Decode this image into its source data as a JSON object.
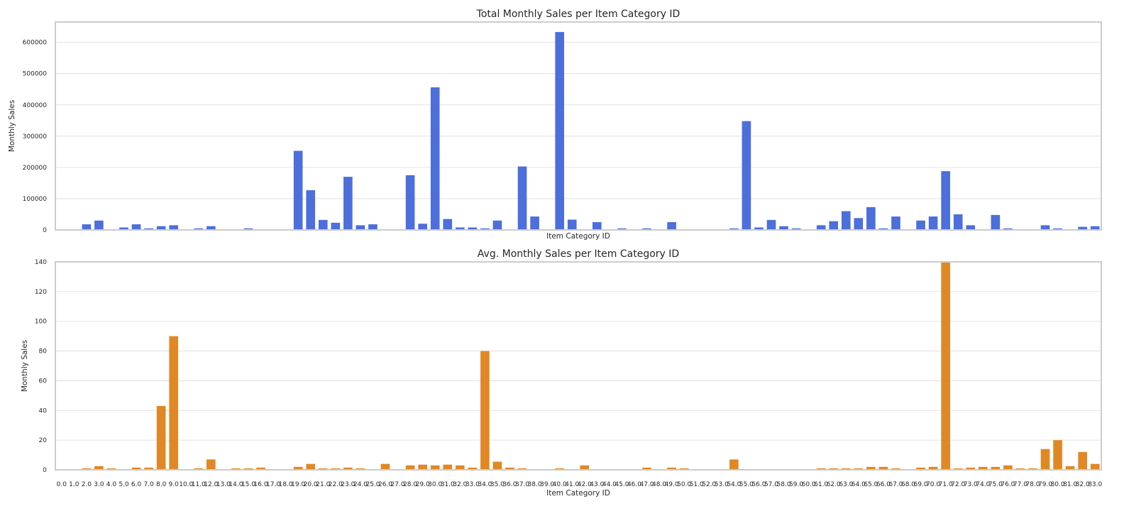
{
  "chart_data": [
    {
      "type": "bar",
      "title": "Total Monthly Sales per Item Category ID",
      "xlabel": "Item Category ID",
      "ylabel": "Monthly Sales",
      "ylim": [
        0,
        665000
      ],
      "yticks": [
        0,
        100000,
        200000,
        300000,
        400000,
        500000,
        600000
      ],
      "color": "#4c6fdc",
      "show_x_tick_labels": false,
      "grid": "horizontal",
      "categories": [
        "0.0",
        "1.0",
        "2.0",
        "3.0",
        "4.0",
        "5.0",
        "6.0",
        "7.0",
        "8.0",
        "9.0",
        "10.0",
        "11.0",
        "12.0",
        "13.0",
        "14.0",
        "15.0",
        "16.0",
        "17.0",
        "18.0",
        "19.0",
        "20.0",
        "21.0",
        "22.0",
        "23.0",
        "24.0",
        "25.0",
        "26.0",
        "27.0",
        "28.0",
        "29.0",
        "30.0",
        "31.0",
        "32.0",
        "33.0",
        "34.0",
        "35.0",
        "36.0",
        "37.0",
        "38.0",
        "39.0",
        "40.0",
        "41.0",
        "42.0",
        "43.0",
        "44.0",
        "45.0",
        "46.0",
        "47.0",
        "48.0",
        "49.0",
        "50.0",
        "51.0",
        "52.0",
        "53.0",
        "54.0",
        "55.0",
        "56.0",
        "57.0",
        "58.0",
        "59.0",
        "60.0",
        "61.0",
        "62.0",
        "63.0",
        "64.0",
        "65.0",
        "66.0",
        "67.0",
        "68.0",
        "69.0",
        "70.0",
        "71.0",
        "72.0",
        "73.0",
        "74.0",
        "75.0",
        "76.0",
        "77.0",
        "78.0",
        "79.0",
        "80.0",
        "81.0",
        "82.0",
        "83.0"
      ],
      "values": [
        0,
        0,
        18000,
        30000,
        0,
        8000,
        18000,
        5000,
        12000,
        15000,
        0,
        5000,
        12000,
        0,
        0,
        5000,
        0,
        0,
        0,
        253000,
        127000,
        32000,
        23000,
        170000,
        15000,
        18000,
        0,
        0,
        175000,
        20000,
        456000,
        35000,
        8000,
        8000,
        5000,
        30000,
        0,
        203000,
        43000,
        0,
        633000,
        33000,
        0,
        25000,
        0,
        5000,
        0,
        5000,
        0,
        25000,
        0,
        0,
        0,
        0,
        5000,
        348000,
        8000,
        32000,
        12000,
        5000,
        0,
        15000,
        28000,
        60000,
        38000,
        73000,
        5000,
        43000,
        0,
        30000,
        43000,
        188000,
        50000,
        15000,
        0,
        48000,
        5000,
        2000,
        0,
        15000,
        5000,
        0,
        10000,
        12000
      ]
    },
    {
      "type": "bar",
      "title": "Avg. Monthly Sales per Item Category ID",
      "xlabel": "Item Category ID",
      "ylabel": "Monthly Sales",
      "ylim": [
        0,
        140
      ],
      "yticks": [
        0,
        20,
        40,
        60,
        80,
        100,
        120,
        140
      ],
      "color": "#e08825",
      "show_x_tick_labels": true,
      "grid": "horizontal",
      "categories": [
        "0.0",
        "1.0",
        "2.0",
        "3.0",
        "4.0",
        "5.0",
        "6.0",
        "7.0",
        "8.0",
        "9.0",
        "10.0",
        "11.0",
        "12.0",
        "13.0",
        "14.0",
        "15.0",
        "16.0",
        "17.0",
        "18.0",
        "19.0",
        "20.0",
        "21.0",
        "22.0",
        "23.0",
        "24.0",
        "25.0",
        "26.0",
        "27.0",
        "28.0",
        "29.0",
        "30.0",
        "31.0",
        "32.0",
        "33.0",
        "34.0",
        "35.0",
        "36.0",
        "37.0",
        "38.0",
        "39.0",
        "40.0",
        "41.0",
        "42.0",
        "43.0",
        "44.0",
        "45.0",
        "46.0",
        "47.0",
        "48.0",
        "49.0",
        "50.0",
        "51.0",
        "52.0",
        "53.0",
        "54.0",
        "55.0",
        "56.0",
        "57.0",
        "58.0",
        "59.0",
        "60.0",
        "61.0",
        "62.0",
        "63.0",
        "64.0",
        "65.0",
        "66.0",
        "67.0",
        "68.0",
        "69.0",
        "70.0",
        "71.0",
        "72.0",
        "73.0",
        "74.0",
        "75.0",
        "76.0",
        "77.0",
        "78.0",
        "79.0",
        "80.0",
        "81.0",
        "82.0",
        "83.0"
      ],
      "values": [
        0,
        0,
        1,
        2.5,
        1,
        0,
        1.5,
        1.5,
        43,
        90,
        0,
        1,
        7,
        0,
        1,
        1,
        1.5,
        0,
        0,
        2,
        4,
        1,
        1,
        1.5,
        1,
        0,
        4,
        0,
        3,
        3.5,
        3,
        3.5,
        3,
        1.5,
        80,
        5.5,
        1.5,
        1,
        0,
        0,
        1,
        0,
        3,
        0,
        0,
        0,
        0,
        1.5,
        0,
        1.5,
        1,
        0,
        0,
        0,
        7,
        0,
        0,
        0,
        0,
        0,
        0,
        1,
        1,
        1,
        1,
        2,
        2,
        1,
        0,
        1.5,
        2,
        140,
        1,
        1.5,
        2,
        2,
        3,
        1,
        1,
        14,
        20,
        2.5,
        12,
        4
      ]
    }
  ]
}
